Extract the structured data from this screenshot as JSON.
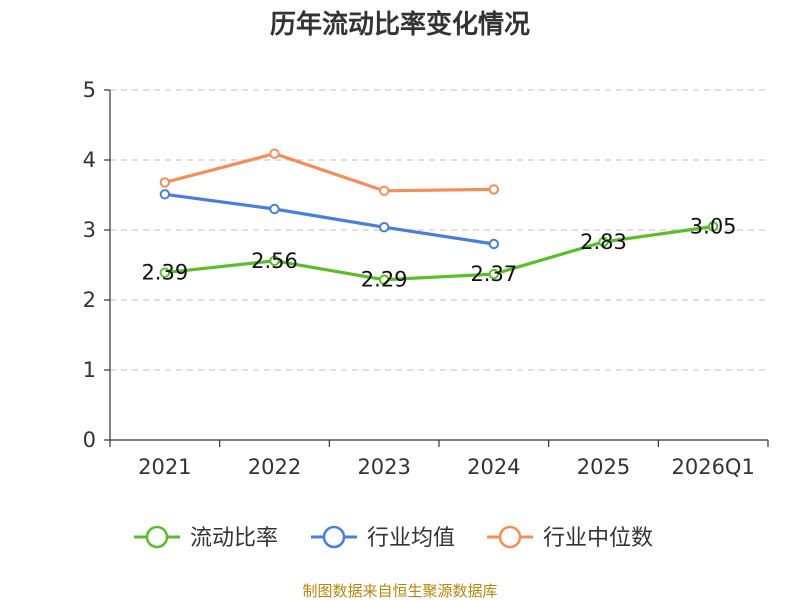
{
  "chart_data": {
    "type": "line",
    "title": "历年流动比率变化情况",
    "categories": [
      "2021",
      "2022",
      "2023",
      "2024",
      "2025",
      "2026Q1"
    ],
    "ylim": [
      0,
      5
    ],
    "yticks": [
      "0",
      "1",
      "2",
      "3",
      "4",
      "5"
    ],
    "grid": true,
    "legend_position": "bottom",
    "series": [
      {
        "name": "流动比率",
        "color": "#5bbd2b",
        "values": [
          2.39,
          2.56,
          2.29,
          2.37,
          2.83,
          3.05
        ],
        "labels": [
          "2.39",
          "2.56",
          "2.29",
          "2.37",
          "2.83",
          "3.05"
        ],
        "marker": "hollow-circle"
      },
      {
        "name": "行业均值",
        "color": "#4a7fd9",
        "values": [
          3.51,
          3.3,
          3.04,
          2.8,
          null,
          null
        ],
        "marker": "hollow-circle"
      },
      {
        "name": "行业中位数",
        "color": "#f28f5b",
        "values": [
          3.68,
          4.09,
          3.56,
          3.58,
          null,
          null
        ],
        "marker": "hollow-circle"
      }
    ],
    "source": "制图数据来自恒生聚源数据库"
  }
}
